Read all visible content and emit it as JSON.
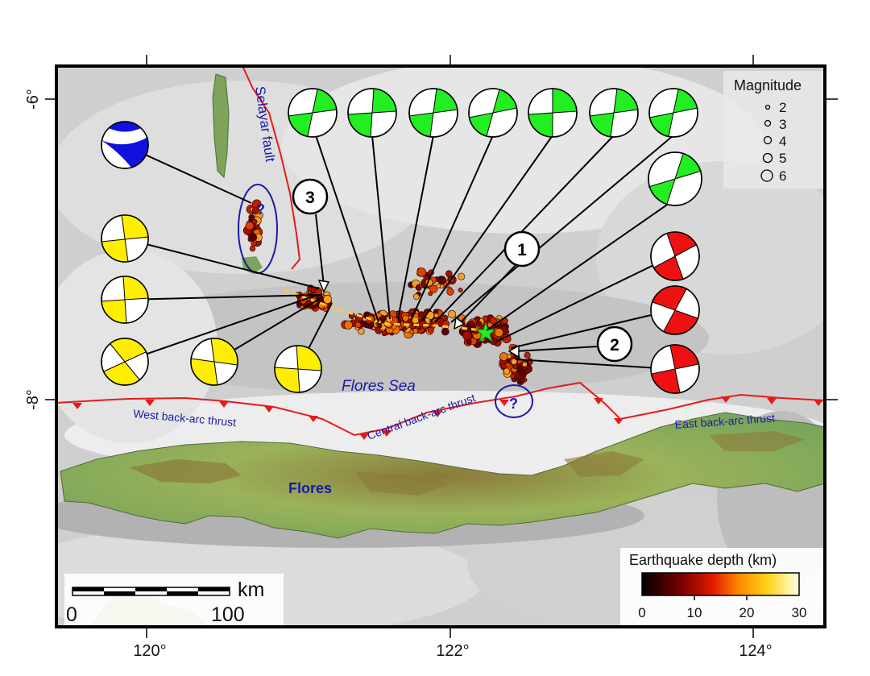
{
  "axes": {
    "x_ticks": [
      "120°",
      "122°",
      "124°"
    ],
    "y_ticks": [
      "-6°",
      "-8°"
    ]
  },
  "labels": {
    "selayar_fault": "Selayar fault",
    "flores_sea": "Flores Sea",
    "flores": "Flores",
    "west_thrust": "West back-arc thrust",
    "central_thrust": "Central back-arc thrust",
    "east_thrust": "East back-arc thrust",
    "question_1": "?",
    "question_2": "?"
  },
  "callouts": [
    "1",
    "2",
    "3"
  ],
  "magnitude_legend": {
    "title": "Magnitude",
    "items": [
      "2",
      "3",
      "4",
      "5",
      "6"
    ]
  },
  "depth_legend": {
    "title": "Earthquake depth (km)",
    "ticks": [
      "0",
      "10",
      "20",
      "30"
    ]
  },
  "scale_bar": {
    "unit": "km",
    "start": "0",
    "end": "100"
  },
  "colors": {
    "green_mechanism": "#22ee22",
    "red_mechanism": "#ee1111",
    "yellow_mechanism": "#ffee00",
    "blue_mechanism": "#1111dd",
    "fault_line": "#e41b1b",
    "annotation_blue": "#1a1aa8"
  }
}
